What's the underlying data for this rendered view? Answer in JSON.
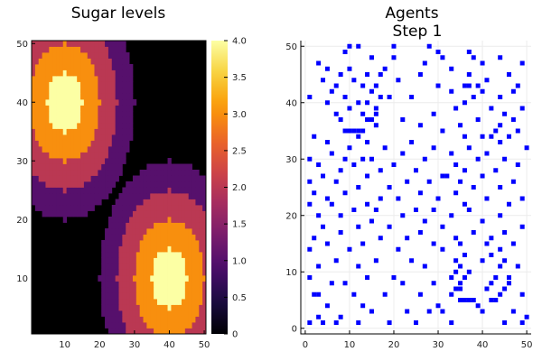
{
  "chart_data": [
    {
      "type": "heatmap",
      "title": "Sugar levels",
      "xlim": [
        0.5,
        50.5
      ],
      "ylim": [
        0.5,
        50.5
      ],
      "xticks": [
        10,
        20,
        30,
        40,
        50
      ],
      "yticks": [
        10,
        20,
        30,
        40,
        50
      ],
      "colorbar": {
        "range": [
          0,
          4
        ],
        "ticks": [
          "0",
          "0.5",
          "1.0",
          "1.5",
          "2.0",
          "2.5",
          "3.0",
          "3.5",
          "4.0"
        ],
        "colormap": "inferno",
        "stops": [
          "#000004",
          "#1b0c41",
          "#4a0c6b",
          "#781c6d",
          "#a52c60",
          "#cf4446",
          "#ed6925",
          "#fb9b06",
          "#f7d13d",
          "#fcffa4"
        ]
      },
      "grid": false,
      "peaks": [
        {
          "x": 10,
          "y": 40,
          "max": 4
        },
        {
          "x": 40,
          "y": 10,
          "max": 4
        }
      ],
      "levels": {
        "4": 5,
        "3": 10,
        "2": 15,
        "1": 20
      }
    },
    {
      "type": "scatter",
      "title": "Agents\nStep 1",
      "xlim": [
        -1,
        51
      ],
      "ylim": [
        -1,
        51
      ],
      "xticks": [
        0,
        10,
        20,
        30,
        40,
        50
      ],
      "yticks": [
        0,
        10,
        20,
        30,
        40,
        50
      ],
      "grid": true,
      "marker": "square",
      "color": "#0000ff",
      "points": [
        [
          1,
          1
        ],
        [
          4,
          1
        ],
        [
          7,
          1
        ],
        [
          12,
          1
        ],
        [
          19,
          1
        ],
        [
          25,
          1
        ],
        [
          33,
          1
        ],
        [
          45,
          1
        ],
        [
          49,
          1
        ],
        [
          50,
          2
        ],
        [
          3,
          2
        ],
        [
          8,
          2
        ],
        [
          15,
          3
        ],
        [
          23,
          3
        ],
        [
          28,
          3
        ],
        [
          31,
          3
        ],
        [
          40,
          3
        ],
        [
          47,
          3
        ],
        [
          5,
          4
        ],
        [
          13,
          4
        ],
        [
          30,
          4
        ],
        [
          39,
          4
        ],
        [
          35,
          5
        ],
        [
          36,
          5
        ],
        [
          37,
          5
        ],
        [
          38,
          5
        ],
        [
          42,
          5
        ],
        [
          43,
          5
        ],
        [
          2,
          6
        ],
        [
          3,
          6
        ],
        [
          11,
          6
        ],
        [
          18,
          6
        ],
        [
          26,
          6
        ],
        [
          33,
          6
        ],
        [
          44,
          6
        ],
        [
          49,
          6
        ],
        [
          34,
          7
        ],
        [
          35,
          7
        ],
        [
          41,
          7
        ],
        [
          45,
          7
        ],
        [
          6,
          8
        ],
        [
          9,
          8
        ],
        [
          22,
          8
        ],
        [
          29,
          8
        ],
        [
          35,
          8
        ],
        [
          42,
          8
        ],
        [
          46,
          8
        ],
        [
          1,
          9
        ],
        [
          14,
          9
        ],
        [
          20,
          9
        ],
        [
          33,
          9
        ],
        [
          36,
          9
        ],
        [
          43,
          9
        ],
        [
          46,
          9
        ],
        [
          34,
          10
        ],
        [
          37,
          10
        ],
        [
          3,
          11
        ],
        [
          12,
          11
        ],
        [
          27,
          11
        ],
        [
          35,
          11
        ],
        [
          44,
          11
        ],
        [
          48,
          11
        ],
        [
          7,
          12
        ],
        [
          16,
          12
        ],
        [
          24,
          12
        ],
        [
          34,
          12
        ],
        [
          40,
          12
        ],
        [
          45,
          12
        ],
        [
          36,
          13
        ],
        [
          42,
          13
        ],
        [
          1,
          14
        ],
        [
          10,
          14
        ],
        [
          21,
          14
        ],
        [
          31,
          14
        ],
        [
          44,
          14
        ],
        [
          5,
          15
        ],
        [
          13,
          15
        ],
        [
          29,
          15
        ],
        [
          35,
          15
        ],
        [
          41,
          15
        ],
        [
          47,
          15
        ],
        [
          2,
          16
        ],
        [
          17,
          16
        ],
        [
          23,
          16
        ],
        [
          34,
          16
        ],
        [
          42,
          16
        ],
        [
          8,
          17
        ],
        [
          26,
          17
        ],
        [
          38,
          17
        ],
        [
          45,
          17
        ],
        [
          4,
          18
        ],
        [
          12,
          18
        ],
        [
          19,
          18
        ],
        [
          31,
          18
        ],
        [
          49,
          18
        ],
        [
          15,
          19
        ],
        [
          27,
          19
        ],
        [
          40,
          19
        ],
        [
          3,
          20
        ],
        [
          8,
          20
        ],
        [
          22,
          20
        ],
        [
          33,
          20
        ],
        [
          44,
          20
        ],
        [
          11,
          21
        ],
        [
          16,
          21
        ],
        [
          25,
          21
        ],
        [
          29,
          21
        ],
        [
          37,
          21
        ],
        [
          1,
          22
        ],
        [
          6,
          22
        ],
        [
          14,
          22
        ],
        [
          36,
          22
        ],
        [
          46,
          22
        ],
        [
          5,
          23
        ],
        [
          17,
          23
        ],
        [
          21,
          23
        ],
        [
          30,
          23
        ],
        [
          41,
          23
        ],
        [
          49,
          23
        ],
        [
          2,
          24
        ],
        [
          9,
          24
        ],
        [
          26,
          24
        ],
        [
          34,
          24
        ],
        [
          12,
          25
        ],
        [
          19,
          25
        ],
        [
          38,
          25
        ],
        [
          44,
          25
        ],
        [
          1,
          26
        ],
        [
          7,
          26
        ],
        [
          23,
          26
        ],
        [
          28,
          26
        ],
        [
          35,
          26
        ],
        [
          47,
          26
        ],
        [
          4,
          27
        ],
        [
          14,
          27
        ],
        [
          31,
          27
        ],
        [
          32,
          27
        ],
        [
          40,
          27
        ],
        [
          8,
          28
        ],
        [
          17,
          28
        ],
        [
          25,
          28
        ],
        [
          36,
          28
        ],
        [
          43,
          28
        ],
        [
          3,
          29
        ],
        [
          11,
          29
        ],
        [
          20,
          29
        ],
        [
          34,
          29
        ],
        [
          48,
          29
        ],
        [
          1,
          30
        ],
        [
          9,
          30
        ],
        [
          13,
          30
        ],
        [
          15,
          30
        ],
        [
          27,
          30
        ],
        [
          39,
          30
        ],
        [
          45,
          30
        ],
        [
          6,
          31
        ],
        [
          22,
          31
        ],
        [
          33,
          31
        ],
        [
          41,
          31
        ],
        [
          10,
          32
        ],
        [
          18,
          32
        ],
        [
          29,
          32
        ],
        [
          37,
          32
        ],
        [
          50,
          32
        ],
        [
          5,
          33
        ],
        [
          14,
          33
        ],
        [
          24,
          33
        ],
        [
          44,
          33
        ],
        [
          2,
          34
        ],
        [
          12,
          34
        ],
        [
          36,
          34
        ],
        [
          40,
          34
        ],
        [
          42,
          34
        ],
        [
          46,
          34
        ],
        [
          9,
          35
        ],
        [
          10,
          35
        ],
        [
          11,
          35
        ],
        [
          12,
          35
        ],
        [
          13,
          35
        ],
        [
          31,
          35
        ],
        [
          43,
          35
        ],
        [
          48,
          35
        ],
        [
          16,
          36
        ],
        [
          26,
          36
        ],
        [
          35,
          36
        ],
        [
          44,
          36
        ],
        [
          8,
          37
        ],
        [
          14,
          37
        ],
        [
          15,
          37
        ],
        [
          22,
          37
        ],
        [
          39,
          37
        ],
        [
          47,
          37
        ],
        [
          7,
          38
        ],
        [
          13,
          38
        ],
        [
          16,
          38
        ],
        [
          29,
          38
        ],
        [
          45,
          38
        ],
        [
          10,
          39
        ],
        [
          16,
          39
        ],
        [
          34,
          39
        ],
        [
          42,
          39
        ],
        [
          49,
          39
        ],
        [
          5,
          40
        ],
        [
          12,
          40
        ],
        [
          14,
          40
        ],
        [
          36,
          40
        ],
        [
          1,
          41
        ],
        [
          9,
          41
        ],
        [
          17,
          41
        ],
        [
          19,
          41
        ],
        [
          24,
          41
        ],
        [
          38,
          41
        ],
        [
          44,
          41
        ],
        [
          6,
          42
        ],
        [
          15,
          42
        ],
        [
          33,
          42
        ],
        [
          40,
          42
        ],
        [
          47,
          42
        ],
        [
          7,
          43
        ],
        [
          13,
          43
        ],
        [
          16,
          43
        ],
        [
          30,
          43
        ],
        [
          36,
          43
        ],
        [
          37,
          43
        ],
        [
          39,
          43
        ],
        [
          48,
          43
        ],
        [
          4,
          44
        ],
        [
          11,
          44
        ],
        [
          21,
          44
        ],
        [
          41,
          44
        ],
        [
          8,
          45
        ],
        [
          14,
          45
        ],
        [
          17,
          45
        ],
        [
          26,
          45
        ],
        [
          37,
          45
        ],
        [
          46,
          45
        ],
        [
          5,
          46
        ],
        [
          10,
          46
        ],
        [
          18,
          46
        ],
        [
          33,
          46
        ],
        [
          3,
          47
        ],
        [
          27,
          47
        ],
        [
          40,
          47
        ],
        [
          49,
          47
        ],
        [
          15,
          48
        ],
        [
          20,
          48
        ],
        [
          31,
          48
        ],
        [
          38,
          48
        ],
        [
          44,
          48
        ],
        [
          9,
          49
        ],
        [
          30,
          49
        ],
        [
          37,
          49
        ],
        [
          10,
          50
        ],
        [
          12,
          50
        ],
        [
          20,
          50
        ],
        [
          28,
          50
        ]
      ]
    }
  ]
}
